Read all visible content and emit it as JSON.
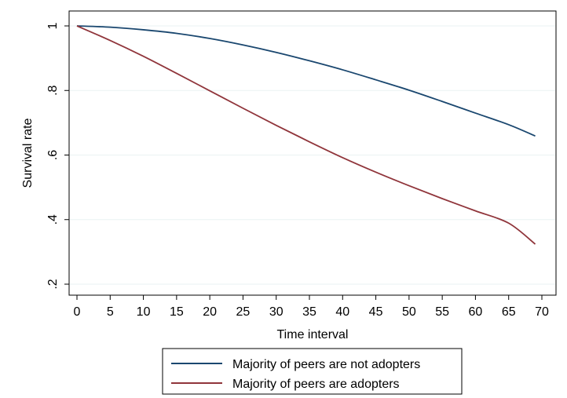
{
  "chart_data": {
    "type": "line",
    "title": "",
    "xlabel": "Time interval",
    "ylabel": "Survival rate",
    "xlim": [
      0,
      70
    ],
    "ylim": [
      0.2,
      1.0
    ],
    "xticks": [
      0,
      5,
      10,
      15,
      20,
      25,
      30,
      35,
      40,
      45,
      50,
      55,
      60,
      65,
      70
    ],
    "xtick_labels": [
      "0",
      "5",
      "10",
      "15",
      "20",
      "25",
      "30",
      "35",
      "40",
      "45",
      "50",
      "55",
      "60",
      "65",
      "70"
    ],
    "yticks": [
      0.2,
      0.4,
      0.6,
      0.8,
      1.0
    ],
    "ytick_labels": [
      ".2",
      ".4",
      ".6",
      ".8",
      "1"
    ],
    "grid": "horizontal",
    "legend_position": "bottom",
    "x": [
      0,
      5,
      10,
      15,
      20,
      25,
      30,
      35,
      40,
      45,
      50,
      55,
      60,
      65,
      69
    ],
    "series": [
      {
        "name": "Majority of peers are not adopters",
        "color": "#1a476f",
        "values": [
          1.0,
          0.996,
          0.988,
          0.977,
          0.961,
          0.941,
          0.918,
          0.892,
          0.864,
          0.833,
          0.801,
          0.766,
          0.73,
          0.694,
          0.659
        ]
      },
      {
        "name": "Majority of peers are adopters",
        "color": "#90353b",
        "values": [
          1.0,
          0.955,
          0.906,
          0.853,
          0.799,
          0.745,
          0.692,
          0.641,
          0.592,
          0.547,
          0.505,
          0.465,
          0.427,
          0.389,
          0.324
        ]
      }
    ]
  }
}
